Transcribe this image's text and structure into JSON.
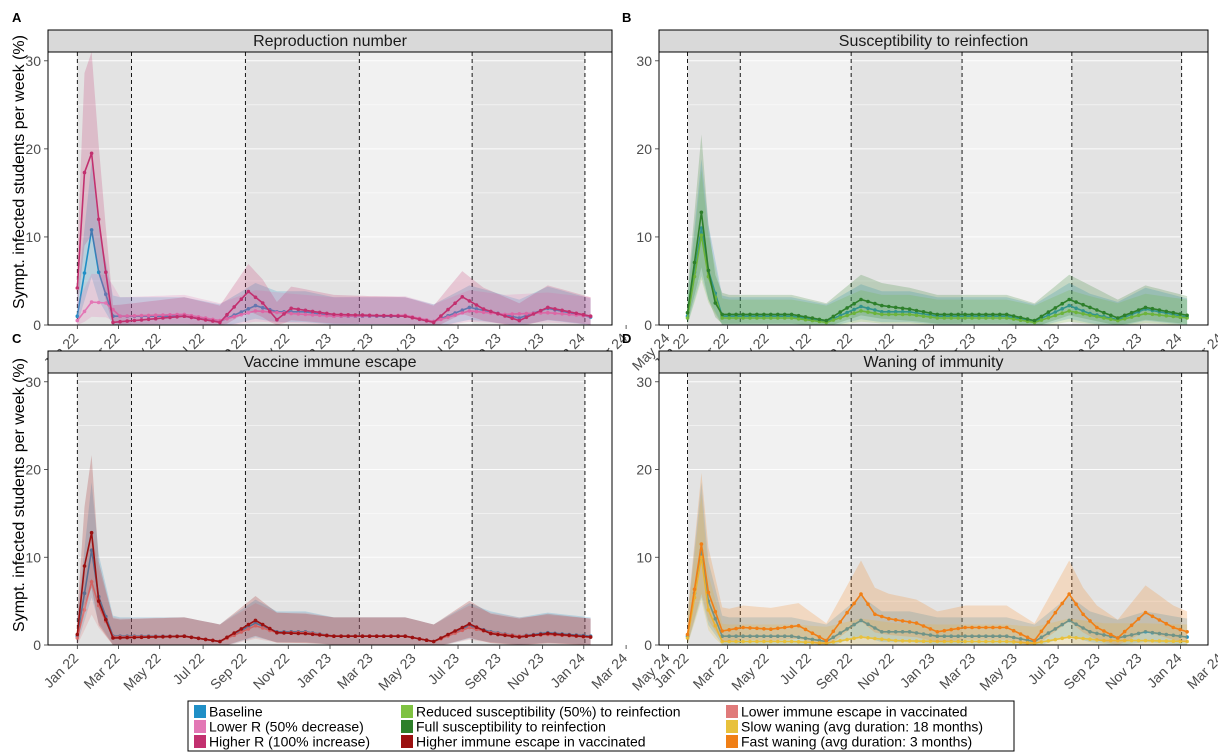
{
  "figure": {
    "ylabel": "Sympt. infected students per week (%)",
    "x_tick_labels": [
      "Jan 22",
      "Mar 22",
      "May 22",
      "Jul 22",
      "Sep 22",
      "Nov 22",
      "Jan 23",
      "Mar 23",
      "May 23",
      "Jul 23",
      "Sep 23",
      "Nov 23",
      "Jan 24",
      "Mar 24",
      "May 24"
    ],
    "y_tick_labels": [
      "0",
      "10",
      "20",
      "30"
    ]
  },
  "chart_data": [
    {
      "type": "line",
      "panel": "A",
      "title": "Reproduction number",
      "ylim": [
        0,
        31
      ],
      "x_unit": "weeks since start of Jan 2022",
      "series": [
        {
          "name": "Baseline",
          "color": "#1f8fc6",
          "peaks": [
            [
              0,
              1.0
            ],
            [
              2,
              10.8
            ],
            [
              3,
              6
            ],
            [
              5,
              1.0
            ],
            [
              15,
              1.0
            ],
            [
              20,
              0.4
            ],
            [
              25,
              2.2
            ],
            [
              28,
              1.5
            ],
            [
              32,
              1.5
            ],
            [
              36,
              1.0
            ],
            [
              46,
              1.0
            ],
            [
              50,
              0.4
            ],
            [
              55,
              2.0
            ],
            [
              58,
              1.5
            ],
            [
              62,
              0.8
            ],
            [
              66,
              1.9
            ],
            [
              72,
              0.9
            ]
          ]
        },
        {
          "name": "Lower R (50% decrease)",
          "color": "#e377b5",
          "peaks": [
            [
              0,
              0.5
            ],
            [
              2,
              2.6
            ],
            [
              4,
              2.5
            ],
            [
              6,
              1.0
            ],
            [
              15,
              1.2
            ],
            [
              20,
              0.5
            ],
            [
              25,
              1.6
            ],
            [
              30,
              1.3
            ],
            [
              36,
              1.0
            ],
            [
              46,
              1.1
            ],
            [
              50,
              0.4
            ],
            [
              55,
              1.6
            ],
            [
              60,
              1.2
            ],
            [
              66,
              1.4
            ],
            [
              72,
              1.0
            ]
          ]
        },
        {
          "name": "Higher R (100% increase)",
          "color": "#c2306f",
          "peaks": [
            [
              0,
              4.2
            ],
            [
              1,
              17.3
            ],
            [
              2,
              19.5
            ],
            [
              3,
              12
            ],
            [
              4,
              6
            ],
            [
              5,
              0.3
            ],
            [
              15,
              1.0
            ],
            [
              20,
              0.3
            ],
            [
              24,
              3.8
            ],
            [
              26,
              2.5
            ],
            [
              28,
              0.6
            ],
            [
              30,
              1.9
            ],
            [
              36,
              1.2
            ],
            [
              46,
              1.0
            ],
            [
              50,
              0.3
            ],
            [
              54,
              3.2
            ],
            [
              57,
              1.8
            ],
            [
              62,
              0.5
            ],
            [
              66,
              2.0
            ],
            [
              72,
              1.0
            ]
          ]
        }
      ]
    },
    {
      "type": "line",
      "panel": "B",
      "title": "Susceptibility to reinfection",
      "ylim": [
        0,
        31
      ],
      "series": [
        {
          "name": "Baseline",
          "color": "#1f8fc6",
          "peaks": [
            [
              0,
              1.0
            ],
            [
              2,
              11.0
            ],
            [
              3,
              6.2
            ],
            [
              5,
              1.0
            ],
            [
              15,
              1.0
            ],
            [
              20,
              0.4
            ],
            [
              25,
              2.1
            ],
            [
              28,
              1.5
            ],
            [
              32,
              1.5
            ],
            [
              36,
              1.0
            ],
            [
              46,
              1.0
            ],
            [
              50,
              0.4
            ],
            [
              55,
              2.2
            ],
            [
              58,
              1.3
            ],
            [
              62,
              0.6
            ],
            [
              66,
              1.8
            ],
            [
              72,
              0.9
            ]
          ]
        },
        {
          "name": "Reduced susceptibility (50%) to reinfection",
          "color": "#7fc241",
          "peaks": [
            [
              0,
              0.8
            ],
            [
              2,
              10.2
            ],
            [
              3,
              5.5
            ],
            [
              5,
              0.8
            ],
            [
              15,
              0.8
            ],
            [
              20,
              0.3
            ],
            [
              25,
              1.6
            ],
            [
              28,
              1.2
            ],
            [
              32,
              1.2
            ],
            [
              36,
              0.8
            ],
            [
              46,
              0.8
            ],
            [
              50,
              0.3
            ],
            [
              55,
              1.6
            ],
            [
              58,
              1.1
            ],
            [
              62,
              0.5
            ],
            [
              66,
              1.3
            ],
            [
              72,
              0.8
            ]
          ]
        },
        {
          "name": "Full susceptibility to reinfection",
          "color": "#2d7f2a",
          "peaks": [
            [
              0,
              1.4
            ],
            [
              2,
              12.8
            ],
            [
              3,
              6.2
            ],
            [
              4,
              2.5
            ],
            [
              5,
              1.2
            ],
            [
              15,
              1.2
            ],
            [
              20,
              0.5
            ],
            [
              25,
              2.9
            ],
            [
              28,
              2.2
            ],
            [
              32,
              1.8
            ],
            [
              36,
              1.2
            ],
            [
              46,
              1.2
            ],
            [
              50,
              0.5
            ],
            [
              55,
              2.9
            ],
            [
              58,
              2.0
            ],
            [
              62,
              0.8
            ],
            [
              66,
              2.0
            ],
            [
              72,
              1.1
            ]
          ]
        }
      ]
    },
    {
      "type": "line",
      "panel": "C",
      "title": "Vaccine immune escape",
      "ylim": [
        0,
        31
      ],
      "series": [
        {
          "name": "Baseline",
          "color": "#1f8fc6",
          "peaks": [
            [
              0,
              1.0
            ],
            [
              2,
              10.8
            ],
            [
              3,
              5.5
            ],
            [
              5,
              1.0
            ],
            [
              15,
              1.0
            ],
            [
              20,
              0.4
            ],
            [
              25,
              2.5
            ],
            [
              28,
              1.5
            ],
            [
              32,
              1.5
            ],
            [
              36,
              1.0
            ],
            [
              46,
              1.0
            ],
            [
              50,
              0.4
            ],
            [
              55,
              2.2
            ],
            [
              58,
              1.5
            ],
            [
              62,
              1.0
            ],
            [
              66,
              1.4
            ],
            [
              72,
              1.0
            ]
          ]
        },
        {
          "name": "Lower immune escape in vaccinated",
          "color": "#e07a7a",
          "peaks": [
            [
              0,
              0.8
            ],
            [
              2,
              7.2
            ],
            [
              3,
              4.5
            ],
            [
              5,
              0.9
            ],
            [
              15,
              1.0
            ],
            [
              20,
              0.4
            ],
            [
              25,
              2.2
            ],
            [
              28,
              1.4
            ],
            [
              32,
              1.4
            ],
            [
              36,
              1.0
            ],
            [
              46,
              1.0
            ],
            [
              50,
              0.4
            ],
            [
              55,
              2.0
            ],
            [
              58,
              1.4
            ],
            [
              62,
              1.0
            ],
            [
              66,
              1.2
            ],
            [
              72,
              0.9
            ]
          ]
        },
        {
          "name": "Higher immune escape in vaccinated",
          "color": "#9b1010",
          "peaks": [
            [
              0,
              1.2
            ],
            [
              1,
              9.0
            ],
            [
              2,
              12.8
            ],
            [
              3,
              5.0
            ],
            [
              5,
              0.8
            ],
            [
              15,
              1.0
            ],
            [
              20,
              0.4
            ],
            [
              25,
              2.8
            ],
            [
              28,
              1.4
            ],
            [
              32,
              1.3
            ],
            [
              36,
              1.0
            ],
            [
              46,
              1.0
            ],
            [
              50,
              0.4
            ],
            [
              55,
              2.4
            ],
            [
              58,
              1.3
            ],
            [
              62,
              0.9
            ],
            [
              66,
              1.3
            ],
            [
              72,
              0.9
            ]
          ]
        }
      ]
    },
    {
      "type": "line",
      "panel": "D",
      "title": "Waning of immunity",
      "ylim": [
        0,
        31
      ],
      "series": [
        {
          "name": "Baseline",
          "color": "#1f8fc6",
          "peaks": [
            [
              0,
              1.0
            ],
            [
              2,
              10.8
            ],
            [
              3,
              5
            ],
            [
              5,
              1.0
            ],
            [
              15,
              1.0
            ],
            [
              20,
              0.4
            ],
            [
              25,
              2.8
            ],
            [
              28,
              1.5
            ],
            [
              32,
              1.5
            ],
            [
              36,
              1.0
            ],
            [
              46,
              1.0
            ],
            [
              50,
              0.4
            ],
            [
              55,
              2.8
            ],
            [
              58,
              1.5
            ],
            [
              62,
              0.8
            ],
            [
              66,
              1.5
            ],
            [
              72,
              0.9
            ]
          ]
        },
        {
          "name": "Slow waning (avg duration: 18 months)",
          "color": "#e8c13c",
          "peaks": [
            [
              0,
              0.8
            ],
            [
              2,
              10.0
            ],
            [
              3,
              4
            ],
            [
              5,
              0.4
            ],
            [
              15,
              0.4
            ],
            [
              20,
              0.2
            ],
            [
              25,
              0.9
            ],
            [
              30,
              0.5
            ],
            [
              36,
              0.4
            ],
            [
              46,
              0.4
            ],
            [
              50,
              0.2
            ],
            [
              55,
              0.9
            ],
            [
              60,
              0.5
            ],
            [
              66,
              0.5
            ],
            [
              72,
              0.4
            ]
          ]
        },
        {
          "name": "Fast waning (avg duration: 3 months)",
          "color": "#f07f16",
          "peaks": [
            [
              0,
              1.2
            ],
            [
              2,
              11.5
            ],
            [
              3,
              6
            ],
            [
              5,
              1.6
            ],
            [
              8,
              2.0
            ],
            [
              12,
              1.8
            ],
            [
              16,
              2.2
            ],
            [
              20,
              0.5
            ],
            [
              25,
              5.8
            ],
            [
              27,
              3.5
            ],
            [
              29,
              3.0
            ],
            [
              33,
              2.5
            ],
            [
              36,
              1.5
            ],
            [
              40,
              2.0
            ],
            [
              46,
              2.0
            ],
            [
              50,
              0.5
            ],
            [
              55,
              5.8
            ],
            [
              57,
              3.5
            ],
            [
              59,
              2.0
            ],
            [
              62,
              0.8
            ],
            [
              66,
              3.7
            ],
            [
              70,
              2.0
            ],
            [
              72,
              1.5
            ]
          ]
        }
      ]
    }
  ],
  "legend": [
    {
      "label": "Baseline",
      "color": "#1f8fc6"
    },
    {
      "label": "Lower R (50% decrease)",
      "color": "#e377b5"
    },
    {
      "label": "Higher R (100% increase)",
      "color": "#c2306f"
    },
    {
      "label": "Reduced susceptibility (50%) to reinfection",
      "color": "#7fc241"
    },
    {
      "label": "Full susceptibility to reinfection",
      "color": "#2d7f2a"
    },
    {
      "label": "Higher immune escape in vaccinated",
      "color": "#9b1010"
    },
    {
      "label": "Lower immune escape in vaccinated",
      "color": "#e07a7a"
    },
    {
      "label": "Slow waning (avg duration: 18 months)",
      "color": "#e8c13c"
    },
    {
      "label": "Fast waning (avg duration: 3 months)",
      "color": "#f07f16"
    }
  ],
  "colors": {
    "strip_bg": "#d9d9d9",
    "shade_dark": "#e3e3e3",
    "shade_light": "#f1f1f1"
  }
}
